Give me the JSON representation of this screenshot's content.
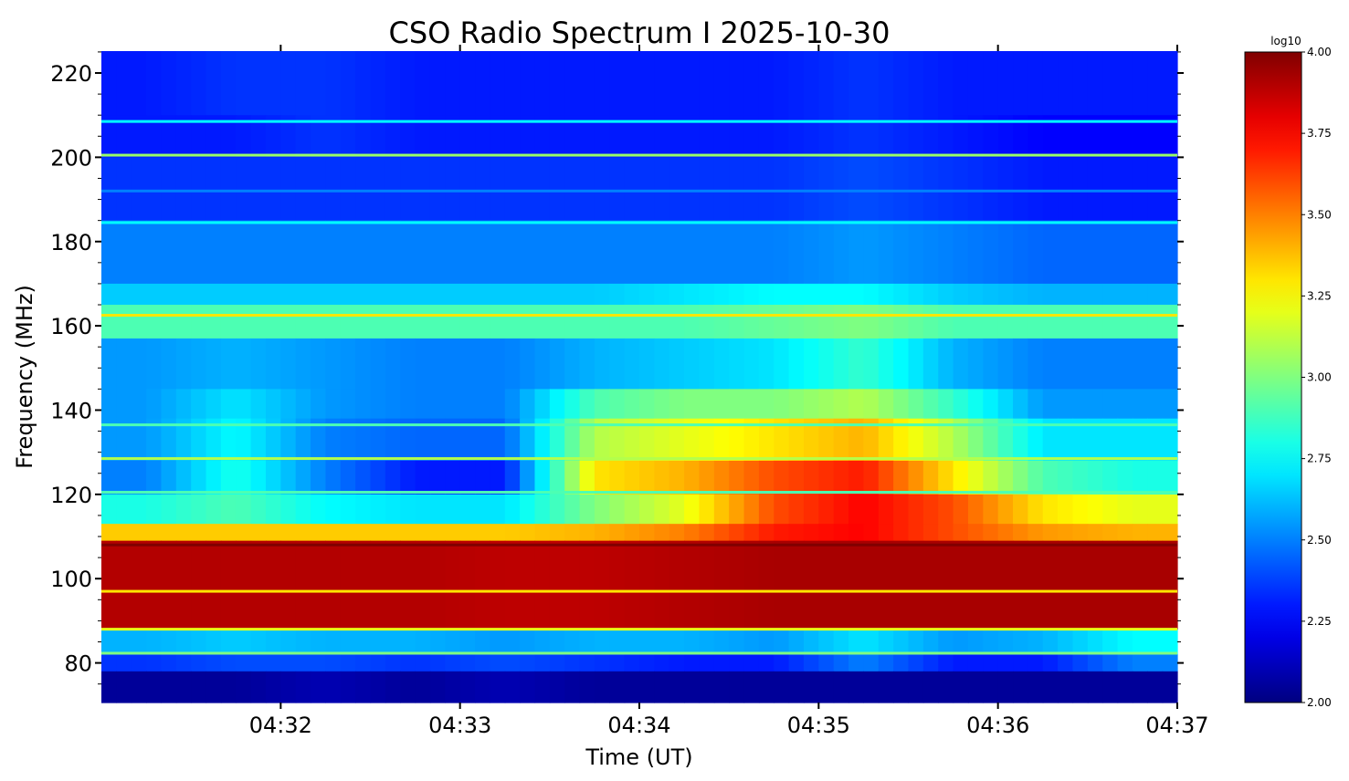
{
  "chart_data": {
    "type": "heatmap",
    "title": "CSO Radio Spectrum I 2025-10-30",
    "xlabel": "Time (UT)",
    "ylabel": "Frequency (MHz)",
    "xlim": [
      "04:31:00",
      "04:37:00"
    ],
    "x_ticks": [
      "04:32",
      "04:33",
      "04:34",
      "04:35",
      "04:36",
      "04:37"
    ],
    "ylim": [
      70.6,
      225.2
    ],
    "y_ticks": [
      80,
      100,
      120,
      140,
      160,
      180,
      200,
      220
    ],
    "colorbar": {
      "label": "log10",
      "range": [
        2.0,
        4.0
      ],
      "ticks": [
        "2.00",
        "2.25",
        "2.50",
        "2.75",
        "3.00",
        "3.25",
        "3.50",
        "3.75",
        "4.00"
      ],
      "colormap": "jet"
    },
    "time_columns_min_from_0431": [
      0.25,
      0.75,
      1.25,
      1.75,
      2.25,
      2.75,
      3.25,
      3.75,
      4.25,
      4.75,
      5.25,
      5.75
    ],
    "bands": [
      {
        "f": [
          210,
          225.2
        ],
        "values": [
          2.3,
          2.35,
          2.35,
          2.3,
          2.3,
          2.3,
          2.3,
          2.3,
          2.35,
          2.3,
          2.3,
          2.3
        ]
      },
      {
        "f": [
          200,
          210
        ],
        "values": [
          2.3,
          2.3,
          2.35,
          2.3,
          2.3,
          2.3,
          2.3,
          2.3,
          2.35,
          2.3,
          2.25,
          2.25
        ]
      },
      {
        "f": [
          185,
          200
        ],
        "values": [
          2.35,
          2.35,
          2.35,
          2.35,
          2.35,
          2.35,
          2.35,
          2.35,
          2.4,
          2.35,
          2.3,
          2.3
        ]
      },
      {
        "f": [
          170,
          185
        ],
        "values": [
          2.5,
          2.5,
          2.5,
          2.5,
          2.5,
          2.5,
          2.5,
          2.5,
          2.55,
          2.5,
          2.45,
          2.45
        ]
      },
      {
        "f": [
          165,
          170
        ],
        "values": [
          2.65,
          2.65,
          2.65,
          2.65,
          2.65,
          2.65,
          2.7,
          2.75,
          2.75,
          2.65,
          2.6,
          2.6
        ]
      },
      {
        "f": [
          157,
          165
        ],
        "values": [
          2.9,
          2.9,
          2.9,
          2.9,
          2.9,
          2.9,
          2.9,
          2.95,
          3.0,
          2.9,
          2.9,
          2.9
        ]
      },
      {
        "f": [
          145,
          157
        ],
        "values": [
          2.55,
          2.6,
          2.55,
          2.5,
          2.5,
          2.6,
          2.65,
          2.7,
          2.85,
          2.6,
          2.5,
          2.5
        ]
      },
      {
        "f": [
          138,
          145
        ],
        "values": [
          2.55,
          2.7,
          2.55,
          2.5,
          2.5,
          2.9,
          3.0,
          3.0,
          3.1,
          2.85,
          2.55,
          2.55
        ]
      },
      {
        "f": [
          128,
          138
        ],
        "values": [
          2.55,
          2.75,
          2.5,
          2.45,
          2.45,
          3.1,
          3.2,
          3.3,
          3.4,
          3.1,
          2.7,
          2.7
        ]
      },
      {
        "f": [
          120,
          128
        ],
        "values": [
          2.5,
          2.8,
          2.5,
          2.3,
          2.3,
          3.3,
          3.4,
          3.6,
          3.7,
          3.3,
          2.9,
          2.8
        ]
      },
      {
        "f": [
          113,
          120
        ],
        "values": [
          2.8,
          2.9,
          2.75,
          2.7,
          2.7,
          3.0,
          3.2,
          3.6,
          3.75,
          3.6,
          3.3,
          3.2
        ]
      },
      {
        "f": [
          109,
          113
        ],
        "values": [
          3.35,
          3.35,
          3.35,
          3.35,
          3.35,
          3.4,
          3.5,
          3.7,
          3.75,
          3.6,
          3.45,
          3.4
        ]
      },
      {
        "f": [
          88,
          109
        ],
        "values": [
          3.9,
          3.9,
          3.9,
          3.9,
          3.88,
          3.88,
          3.9,
          3.92,
          3.92,
          3.92,
          3.92,
          3.92
        ]
      },
      {
        "f": [
          82,
          88
        ],
        "values": [
          2.6,
          2.65,
          2.6,
          2.6,
          2.55,
          2.6,
          2.6,
          2.55,
          2.7,
          2.55,
          2.6,
          2.75
        ]
      },
      {
        "f": [
          78,
          82
        ],
        "values": [
          2.35,
          2.4,
          2.4,
          2.35,
          2.4,
          2.35,
          2.3,
          2.3,
          2.5,
          2.3,
          2.3,
          2.5
        ]
      },
      {
        "f": [
          70.6,
          78
        ],
        "values": [
          2.05,
          2.05,
          2.1,
          2.05,
          2.1,
          2.05,
          2.05,
          2.05,
          2.05,
          2.05,
          2.05,
          2.05
        ]
      }
    ],
    "persistent_lines": [
      {
        "f": 208.5,
        "value": 2.75
      },
      {
        "f": 200.5,
        "value": 3.05
      },
      {
        "f": 192,
        "value": 2.5
      },
      {
        "f": 184.5,
        "value": 2.75
      },
      {
        "f": 162.5,
        "value": 3.3
      },
      {
        "f": 136.5,
        "value": 2.9
      },
      {
        "f": 128.5,
        "value": 3.1
      },
      {
        "f": 120.5,
        "value": 2.9
      },
      {
        "f": 108,
        "value": 4.0
      },
      {
        "f": 97,
        "value": 3.3
      },
      {
        "f": 88,
        "value": 3.2
      },
      {
        "f": 82.3,
        "value": 3.0
      }
    ]
  }
}
